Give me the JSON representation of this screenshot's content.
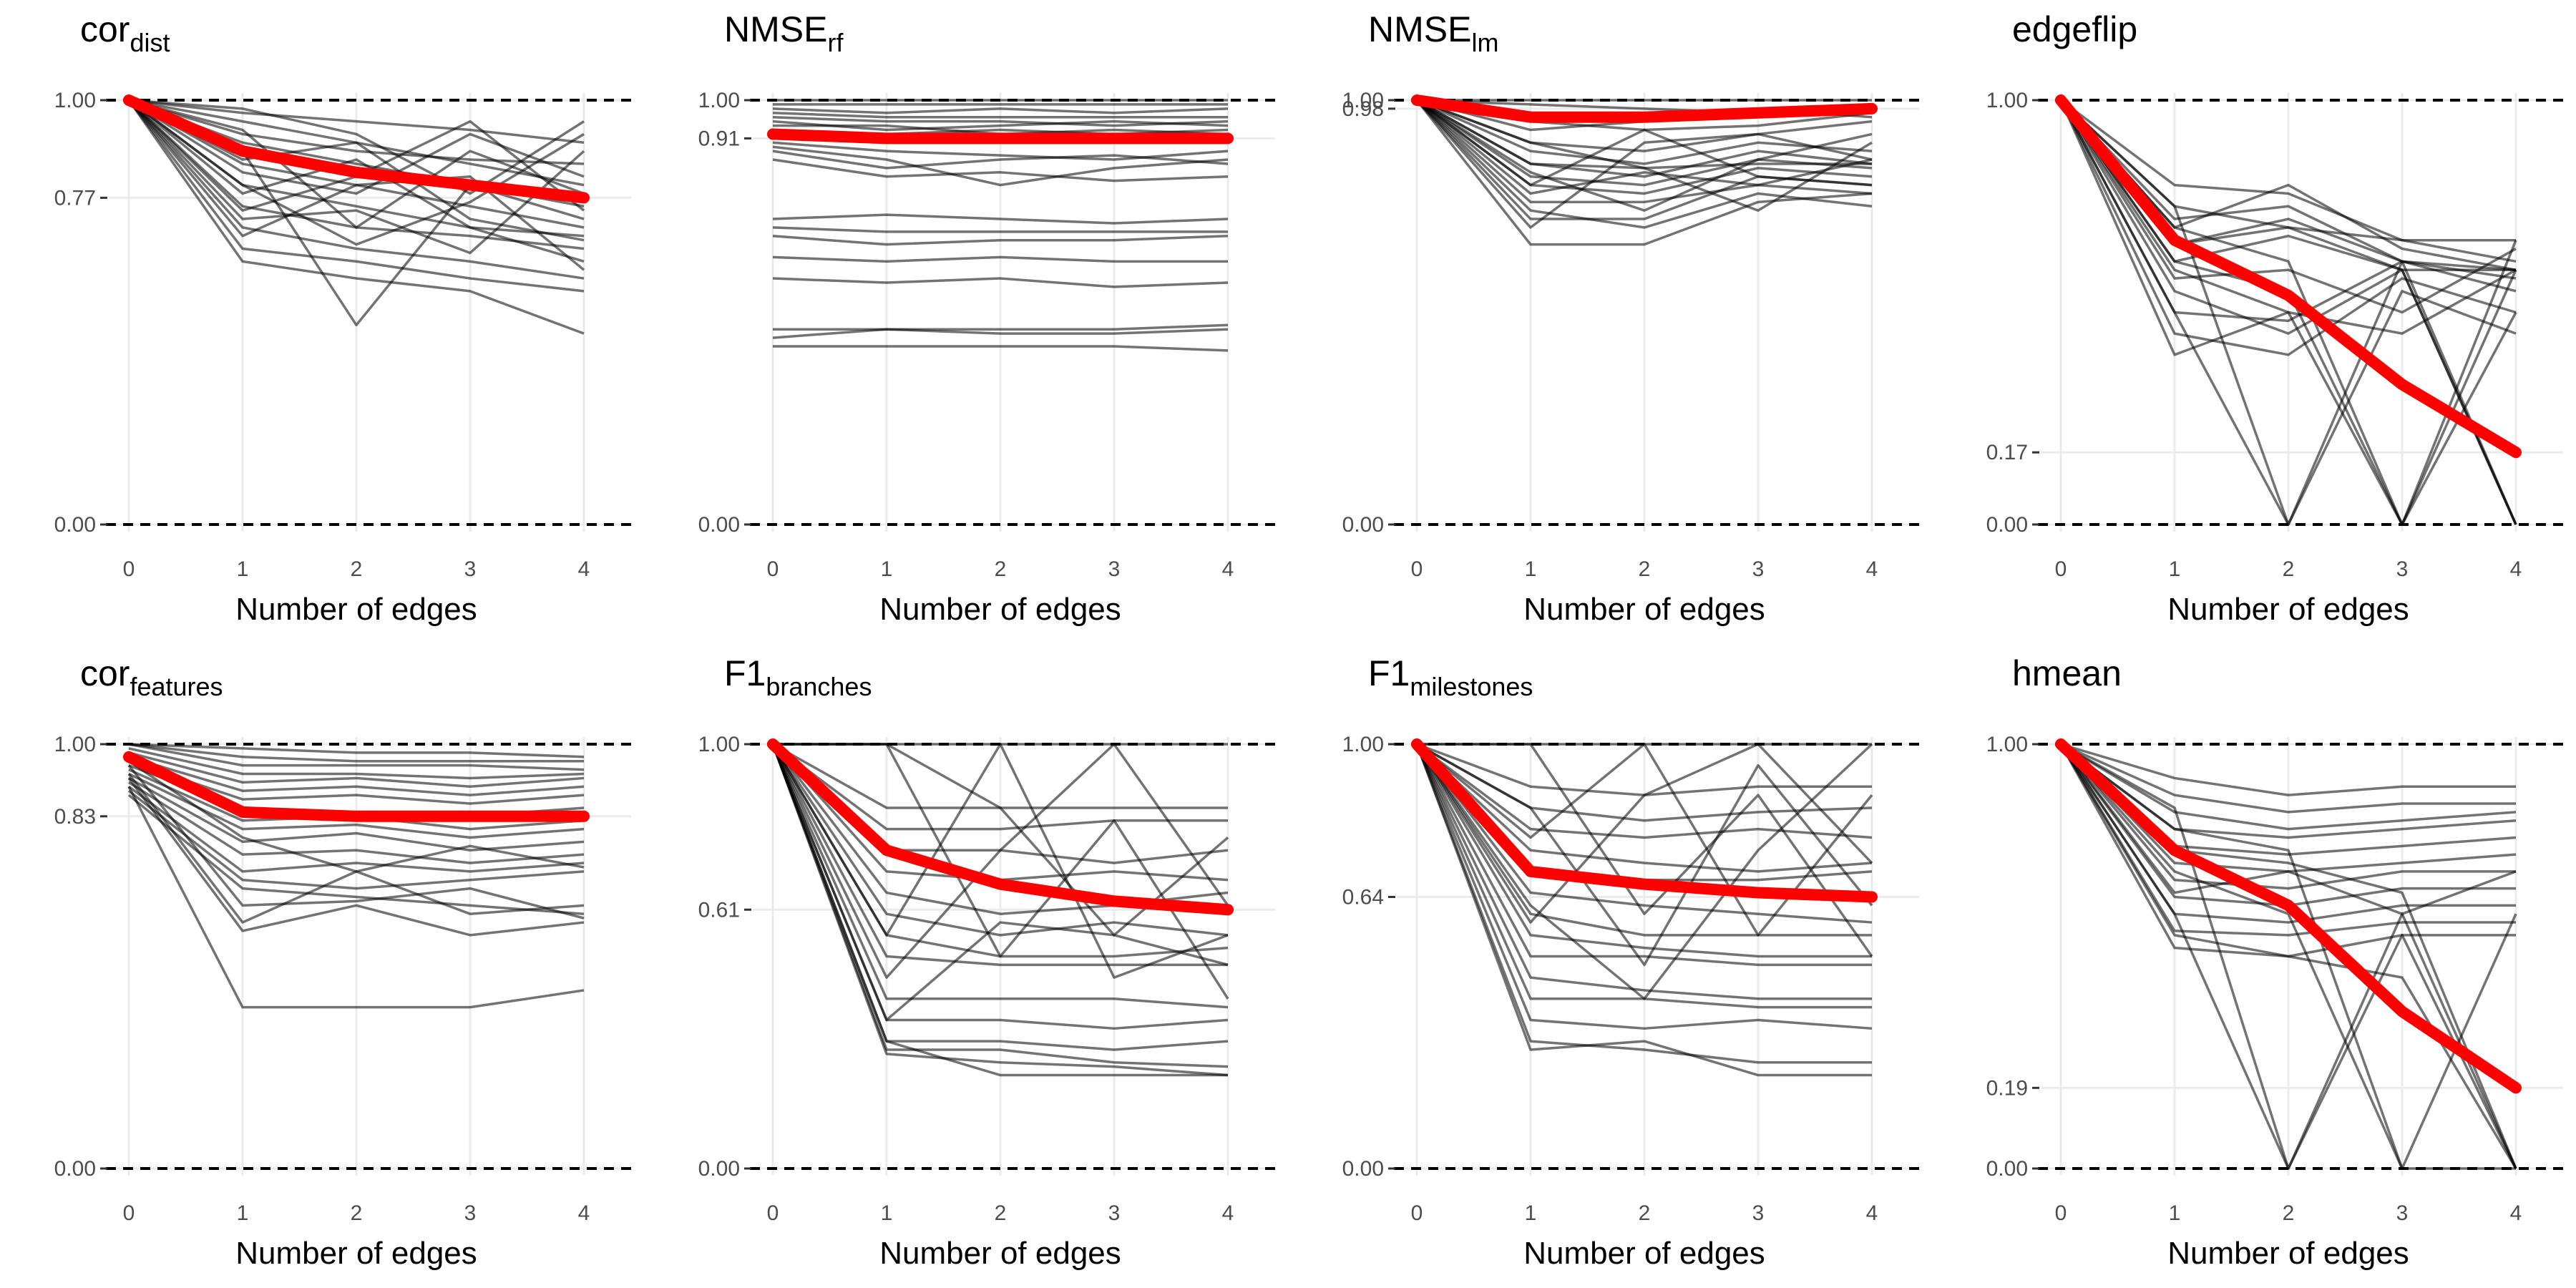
{
  "chart_data": [
    {
      "type": "line",
      "title": "cor",
      "title_sub": "dist",
      "xlabel": "Number of edges",
      "x": [
        0,
        1,
        2,
        3,
        4
      ],
      "ylim": [
        0,
        1
      ],
      "yticks": [
        0.0,
        0.77,
        1.0
      ],
      "ytick_labels": [
        "0.00",
        "0.77",
        "1.00"
      ],
      "mean": [
        1.0,
        0.88,
        0.83,
        0.8,
        0.77
      ],
      "grey_lines": [
        [
          1,
          0.95,
          0.9,
          0.85,
          0.8
        ],
        [
          1,
          0.9,
          0.85,
          0.8,
          0.75
        ],
        [
          1,
          0.85,
          0.8,
          0.75,
          0.7
        ],
        [
          1,
          0.8,
          0.75,
          0.7,
          0.68
        ],
        [
          1,
          0.75,
          0.7,
          0.68,
          0.65
        ],
        [
          1,
          0.7,
          0.65,
          0.62,
          0.58
        ],
        [
          1,
          0.65,
          0.62,
          0.58,
          0.55
        ],
        [
          1,
          0.62,
          0.58,
          0.55,
          0.45
        ],
        [
          1,
          0.97,
          0.95,
          0.93,
          0.9
        ],
        [
          1,
          0.92,
          0.88,
          0.86,
          0.85
        ],
        [
          1,
          0.88,
          0.47,
          0.8,
          0.72
        ],
        [
          1,
          0.83,
          0.78,
          0.92,
          0.82
        ],
        [
          1,
          0.78,
          0.86,
          0.7,
          0.62
        ],
        [
          1,
          0.72,
          0.74,
          0.64,
          0.88
        ],
        [
          1,
          0.68,
          0.8,
          0.82,
          0.6
        ],
        [
          1,
          0.98,
          0.92,
          0.78,
          0.95
        ],
        [
          1,
          0.93,
          0.7,
          0.88,
          0.78
        ],
        [
          1,
          0.86,
          0.9,
          0.72,
          0.67
        ],
        [
          1,
          0.8,
          0.66,
          0.76,
          0.92
        ],
        [
          1,
          0.74,
          0.82,
          0.95,
          0.74
        ]
      ]
    },
    {
      "type": "line",
      "title": "NMSE",
      "title_sub": "rf",
      "xlabel": "Number of edges",
      "x": [
        0,
        1,
        2,
        3,
        4
      ],
      "ylim": [
        0,
        1
      ],
      "yticks": [
        0.0,
        0.91,
        1.0
      ],
      "ytick_labels": [
        "0.00",
        "0.91",
        "1.00"
      ],
      "mean": [
        0.92,
        0.91,
        0.91,
        0.91,
        0.91
      ],
      "grey_lines": [
        [
          1,
          1,
          1,
          1,
          1
        ],
        [
          0.99,
          0.99,
          0.99,
          0.99,
          0.99
        ],
        [
          0.98,
          0.97,
          0.98,
          0.97,
          0.98
        ],
        [
          0.97,
          0.96,
          0.96,
          0.96,
          0.96
        ],
        [
          0.96,
          0.95,
          0.95,
          0.94,
          0.95
        ],
        [
          0.95,
          0.93,
          0.94,
          0.95,
          0.94
        ],
        [
          0.94,
          0.94,
          0.92,
          0.93,
          0.92
        ],
        [
          0.93,
          0.92,
          0.93,
          0.92,
          0.93
        ],
        [
          0.9,
          0.88,
          0.87,
          0.86,
          0.88
        ],
        [
          0.89,
          0.86,
          0.8,
          0.84,
          0.86
        ],
        [
          0.88,
          0.84,
          0.86,
          0.87,
          0.85
        ],
        [
          0.86,
          0.82,
          0.83,
          0.81,
          0.82
        ],
        [
          0.72,
          0.73,
          0.72,
          0.71,
          0.72
        ],
        [
          0.7,
          0.69,
          0.69,
          0.69,
          0.69
        ],
        [
          0.68,
          0.66,
          0.67,
          0.67,
          0.68
        ],
        [
          0.63,
          0.62,
          0.63,
          0.62,
          0.62
        ],
        [
          0.58,
          0.57,
          0.58,
          0.56,
          0.57
        ],
        [
          0.46,
          0.46,
          0.46,
          0.46,
          0.47
        ],
        [
          0.44,
          0.46,
          0.45,
          0.45,
          0.46
        ],
        [
          0.42,
          0.42,
          0.42,
          0.42,
          0.41
        ]
      ]
    },
    {
      "type": "line",
      "title": "NMSE",
      "title_sub": "lm",
      "xlabel": "Number of edges",
      "x": [
        0,
        1,
        2,
        3,
        4
      ],
      "ylim": [
        0,
        1
      ],
      "yticks": [
        0.0,
        0.98,
        1.0
      ],
      "ytick_labels": [
        "0.00",
        "0.98",
        "1.00"
      ],
      "mean": [
        1.0,
        0.96,
        0.96,
        0.97,
        0.98
      ],
      "grey_lines": [
        [
          1,
          1,
          1,
          1,
          1
        ],
        [
          1,
          0.99,
          0.98,
          0.97,
          0.99
        ],
        [
          1,
          0.97,
          0.95,
          0.96,
          0.98
        ],
        [
          1,
          0.95,
          0.93,
          0.94,
          0.97
        ],
        [
          1,
          0.93,
          0.95,
          0.98,
          0.96
        ],
        [
          1,
          0.9,
          0.88,
          0.92,
          0.95
        ],
        [
          1,
          0.88,
          0.85,
          0.9,
          0.88
        ],
        [
          1,
          0.85,
          0.82,
          0.88,
          0.85
        ],
        [
          1,
          0.82,
          0.8,
          0.86,
          0.84
        ],
        [
          1,
          0.8,
          0.78,
          0.84,
          0.82
        ],
        [
          1,
          0.78,
          0.83,
          0.8,
          0.86
        ],
        [
          1,
          0.76,
          0.76,
          0.8,
          0.78
        ],
        [
          1,
          0.74,
          0.7,
          0.78,
          0.75
        ],
        [
          1,
          0.72,
          0.72,
          0.82,
          0.8
        ],
        [
          1,
          0.66,
          0.66,
          0.76,
          0.78
        ],
        [
          1,
          0.85,
          0.84,
          0.85,
          0.85
        ],
        [
          1,
          0.8,
          0.93,
          0.82,
          0.8
        ],
        [
          1,
          0.9,
          0.84,
          0.74,
          0.9
        ],
        [
          1,
          0.7,
          0.9,
          0.92,
          0.86
        ],
        [
          1,
          0.83,
          0.74,
          0.86,
          0.92
        ]
      ]
    },
    {
      "type": "line",
      "title": "edgeflip",
      "title_sub": "",
      "xlabel": "Number of edges",
      "x": [
        0,
        1,
        2,
        3,
        4
      ],
      "ylim": [
        0,
        1
      ],
      "yticks": [
        0.0,
        0.17,
        1.0
      ],
      "ytick_labels": [
        "0.00",
        "0.17",
        "1.00"
      ],
      "mean": [
        1.0,
        0.67,
        0.54,
        0.33,
        0.17
      ],
      "grey_lines": [
        [
          1,
          0.8,
          0.78,
          0.67,
          0.67
        ],
        [
          1,
          0.75,
          0.7,
          0.67,
          0.62
        ],
        [
          1,
          0.7,
          0.8,
          0.65,
          0.6
        ],
        [
          1,
          0.66,
          0.72,
          0.62,
          0.58
        ],
        [
          1,
          0.62,
          0.68,
          0.6,
          0.6
        ],
        [
          1,
          0.58,
          0.6,
          0.5,
          0.65
        ],
        [
          1,
          0.5,
          0.48,
          0.62,
          0.55
        ],
        [
          1,
          0.45,
          0.4,
          0.58,
          0.5
        ],
        [
          1,
          0.4,
          0.5,
          0.45,
          0.6
        ],
        [
          1,
          0.75,
          0.0,
          0.62,
          0.6
        ],
        [
          1,
          0.7,
          0.62,
          0.0,
          0.5
        ],
        [
          1,
          0.6,
          0.5,
          0.0,
          0.6
        ],
        [
          1,
          0.55,
          0.45,
          0.6,
          0.0
        ],
        [
          1,
          0.72,
          0.75,
          0.62,
          0.0
        ],
        [
          1,
          0.5,
          0.0,
          0.55,
          0.45
        ],
        [
          1,
          0.66,
          0.7,
          0.6,
          0.0
        ],
        [
          1,
          0.62,
          0.55,
          0.0,
          0.67
        ]
      ]
    },
    {
      "type": "line",
      "title": "cor",
      "title_sub": "features",
      "xlabel": "Number of edges",
      "x": [
        0,
        1,
        2,
        3,
        4
      ],
      "ylim": [
        0,
        1
      ],
      "yticks": [
        0.0,
        0.83,
        1.0
      ],
      "ytick_labels": [
        "0.00",
        "0.83",
        "1.00"
      ],
      "mean": [
        0.97,
        0.84,
        0.83,
        0.83,
        0.83
      ],
      "grey_lines": [
        [
          1,
          0.99,
          0.98,
          0.98,
          0.97
        ],
        [
          1,
          0.97,
          0.96,
          0.96,
          0.96
        ],
        [
          1,
          0.95,
          0.95,
          0.95,
          0.94
        ],
        [
          0.99,
          0.93,
          0.93,
          0.92,
          0.93
        ],
        [
          0.98,
          0.91,
          0.92,
          0.9,
          0.92
        ],
        [
          0.97,
          0.89,
          0.9,
          0.88,
          0.9
        ],
        [
          0.96,
          0.87,
          0.88,
          0.86,
          0.88
        ],
        [
          0.95,
          0.85,
          0.84,
          0.83,
          0.85
        ],
        [
          0.94,
          0.82,
          0.83,
          0.8,
          0.82
        ],
        [
          0.93,
          0.8,
          0.81,
          0.78,
          0.8
        ],
        [
          0.92,
          0.77,
          0.79,
          0.75,
          0.77
        ],
        [
          0.91,
          0.74,
          0.75,
          0.72,
          0.74
        ],
        [
          0.9,
          0.7,
          0.72,
          0.7,
          0.72
        ],
        [
          0.89,
          0.68,
          0.66,
          0.68,
          0.7
        ],
        [
          0.88,
          0.66,
          0.64,
          0.62,
          0.6
        ],
        [
          0.95,
          0.62,
          0.63,
          0.66,
          0.59
        ],
        [
          0.93,
          0.58,
          0.7,
          0.6,
          0.62
        ],
        [
          0.92,
          0.56,
          0.62,
          0.55,
          0.58
        ],
        [
          0.9,
          0.38,
          0.38,
          0.38,
          0.42
        ],
        [
          0.96,
          0.78,
          0.7,
          0.76,
          0.71
        ]
      ]
    },
    {
      "type": "line",
      "title": "F1",
      "title_sub": "branches",
      "xlabel": "Number of edges",
      "x": [
        0,
        1,
        2,
        3,
        4
      ],
      "ylim": [
        0,
        1
      ],
      "yticks": [
        0.0,
        0.61,
        1.0
      ],
      "ytick_labels": [
        "0.00",
        "0.61",
        "1.00"
      ],
      "mean": [
        1.0,
        0.75,
        0.67,
        0.63,
        0.61
      ],
      "grey_lines": [
        [
          1,
          1,
          1,
          1,
          1
        ],
        [
          1,
          0.85,
          0.85,
          0.85,
          0.85
        ],
        [
          1,
          0.8,
          0.8,
          0.82,
          0.82
        ],
        [
          1,
          0.75,
          0.75,
          0.72,
          0.75
        ],
        [
          1,
          0.7,
          0.68,
          0.7,
          0.68
        ],
        [
          1,
          0.65,
          0.6,
          0.62,
          0.65
        ],
        [
          1,
          0.6,
          0.55,
          0.58,
          0.55
        ],
        [
          1,
          0.55,
          0.5,
          0.5,
          0.52
        ],
        [
          1,
          0.5,
          0.48,
          0.48,
          0.48
        ],
        [
          1,
          0.4,
          0.4,
          0.4,
          0.38
        ],
        [
          1,
          0.35,
          0.35,
          0.33,
          0.35
        ],
        [
          1,
          0.3,
          0.3,
          0.28,
          0.3
        ],
        [
          1,
          0.28,
          0.28,
          0.25,
          0.24
        ],
        [
          1,
          0.27,
          0.25,
          0.24,
          0.22
        ],
        [
          1,
          0.3,
          0.22,
          0.22,
          0.22
        ],
        [
          1,
          1,
          0.5,
          0.82,
          0.4
        ],
        [
          1,
          0.55,
          1,
          0.45,
          0.55
        ],
        [
          1,
          1,
          0.85,
          0.55,
          0.78
        ],
        [
          1,
          0.45,
          0.75,
          1,
          0.62
        ],
        [
          1,
          0.35,
          0.58,
          0.55,
          0.48
        ]
      ]
    },
    {
      "type": "line",
      "title": "F1",
      "title_sub": "milestones",
      "xlabel": "Number of edges",
      "x": [
        0,
        1,
        2,
        3,
        4
      ],
      "ylim": [
        0,
        1
      ],
      "yticks": [
        0.0,
        0.64,
        1.0
      ],
      "ytick_labels": [
        "0.00",
        "0.64",
        "1.00"
      ],
      "mean": [
        1.0,
        0.7,
        0.67,
        0.65,
        0.64
      ],
      "grey_lines": [
        [
          1,
          1,
          1,
          1,
          1
        ],
        [
          1,
          0.9,
          0.88,
          0.9,
          0.9
        ],
        [
          1,
          0.85,
          0.82,
          0.84,
          0.85
        ],
        [
          1,
          0.8,
          0.78,
          0.8,
          0.78
        ],
        [
          1,
          0.75,
          0.72,
          0.7,
          0.72
        ],
        [
          1,
          0.7,
          0.68,
          0.68,
          0.7
        ],
        [
          1,
          0.65,
          0.62,
          0.6,
          0.58
        ],
        [
          1,
          0.6,
          0.55,
          0.55,
          0.55
        ],
        [
          1,
          0.55,
          0.52,
          0.5,
          0.5
        ],
        [
          1,
          0.5,
          0.5,
          0.48,
          0.48
        ],
        [
          1,
          0.45,
          0.42,
          0.4,
          0.4
        ],
        [
          1,
          0.4,
          0.4,
          0.38,
          0.38
        ],
        [
          1,
          0.35,
          0.33,
          0.35,
          0.33
        ],
        [
          1,
          0.3,
          0.28,
          0.25,
          0.25
        ],
        [
          1,
          0.28,
          0.3,
          0.22,
          0.22
        ],
        [
          1,
          0.78,
          1,
          0.55,
          0.88
        ],
        [
          1,
          0.58,
          0.88,
          1,
          0.72
        ],
        [
          1,
          1,
          0.6,
          0.88,
          0.5
        ],
        [
          1,
          0.62,
          0.4,
          0.75,
          1
        ],
        [
          1,
          0.85,
          0.48,
          0.95,
          0.62
        ]
      ]
    },
    {
      "type": "line",
      "title": "hmean",
      "title_sub": "",
      "xlabel": "Number of edges",
      "x": [
        0,
        1,
        2,
        3,
        4
      ],
      "ylim": [
        0,
        1
      ],
      "yticks": [
        0.0,
        0.19,
        1.0
      ],
      "ytick_labels": [
        "0.00",
        "0.19",
        "1.00"
      ],
      "mean": [
        1.0,
        0.75,
        0.62,
        0.37,
        0.19
      ],
      "grey_lines": [
        [
          1,
          0.92,
          0.88,
          0.9,
          0.9
        ],
        [
          1,
          0.88,
          0.84,
          0.86,
          0.86
        ],
        [
          1,
          0.84,
          0.8,
          0.82,
          0.84
        ],
        [
          1,
          0.8,
          0.78,
          0.8,
          0.82
        ],
        [
          1,
          0.76,
          0.74,
          0.76,
          0.78
        ],
        [
          1,
          0.72,
          0.7,
          0.72,
          0.74
        ],
        [
          1,
          0.68,
          0.66,
          0.7,
          0.7
        ],
        [
          1,
          0.64,
          0.62,
          0.66,
          0.66
        ],
        [
          1,
          0.6,
          0.58,
          0.62,
          0.62
        ],
        [
          1,
          0.56,
          0.55,
          0.58,
          0.58
        ],
        [
          1,
          0.52,
          0.5,
          0.55,
          0.55
        ],
        [
          1,
          0.85,
          0.0,
          0.6,
          0.7
        ],
        [
          1,
          0.8,
          0.75,
          0.0,
          0.6
        ],
        [
          1,
          0.7,
          0.6,
          0.0,
          0.0
        ],
        [
          1,
          0.65,
          0.7,
          0.6,
          0.0
        ],
        [
          1,
          0.6,
          0.0,
          0.55,
          0.0
        ],
        [
          1,
          0.75,
          0.72,
          0.65,
          0.0
        ],
        [
          1,
          0.55,
          0.5,
          0.45,
          0.0
        ]
      ]
    }
  ]
}
